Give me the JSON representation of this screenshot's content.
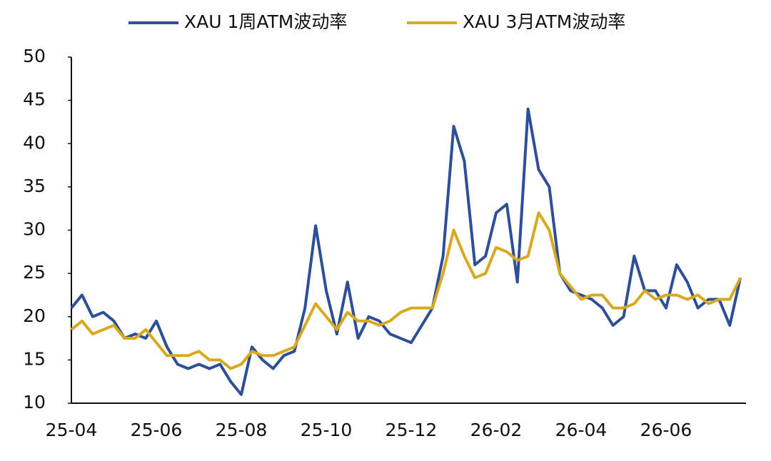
{
  "chart_data": {
    "type": "line",
    "categories": [
      "25-04",
      null,
      null,
      null,
      null,
      null,
      null,
      null,
      "25-06",
      null,
      null,
      null,
      null,
      null,
      null,
      null,
      "25-08",
      null,
      null,
      null,
      null,
      null,
      null,
      null,
      "25-10",
      null,
      null,
      null,
      null,
      null,
      null,
      null,
      "25-12",
      null,
      null,
      null,
      null,
      null,
      null,
      null,
      "26-02",
      null,
      null,
      null,
      null,
      null,
      null,
      null,
      "26-04",
      null,
      null,
      null,
      null,
      null,
      null,
      null,
      "26-06",
      null,
      null,
      null,
      null,
      null,
      null,
      null
    ],
    "series": [
      {
        "name": "XAU 1周ATM波动率",
        "color": "#2d4f97",
        "values": [
          21,
          22.5,
          20,
          20.5,
          19.5,
          17.5,
          18,
          17.5,
          19.5,
          16.5,
          14.5,
          14,
          14.5,
          14,
          14.5,
          12.5,
          11,
          16.5,
          15,
          14,
          15.5,
          16,
          21,
          30.5,
          23,
          18,
          24,
          17.5,
          20,
          19.5,
          18,
          17.5,
          17,
          19,
          21,
          27,
          42,
          38,
          26,
          27,
          32,
          33,
          24,
          44,
          37,
          35,
          25,
          23,
          22.5,
          22,
          21,
          19,
          20,
          27,
          23,
          23,
          21,
          26,
          24,
          21,
          22,
          22,
          19,
          24.5
        ]
      },
      {
        "name": "XAU 3月ATM波动率",
        "color": "#d8a81e",
        "values": [
          18.5,
          19.5,
          18,
          18.5,
          19,
          17.5,
          17.5,
          18.5,
          17,
          15.5,
          15.5,
          15.5,
          16,
          15,
          15,
          14,
          14.5,
          16,
          15.5,
          15.5,
          16,
          16.5,
          19,
          21.5,
          20,
          18.5,
          20.5,
          19.5,
          19.5,
          19,
          19.5,
          20.5,
          21,
          21,
          21,
          25,
          30,
          27,
          24.5,
          25,
          28,
          27.5,
          26.5,
          27,
          32,
          30,
          25,
          23.5,
          22,
          22.5,
          22.5,
          21,
          21,
          21.5,
          23,
          22,
          22.5,
          22.5,
          22,
          22.5,
          21.5,
          22,
          22,
          24.5
        ]
      }
    ],
    "ylim": [
      10,
      50
    ],
    "yticks": [
      10,
      15,
      20,
      25,
      30,
      35,
      40,
      45,
      50
    ],
    "grid": false,
    "legend": "top"
  }
}
